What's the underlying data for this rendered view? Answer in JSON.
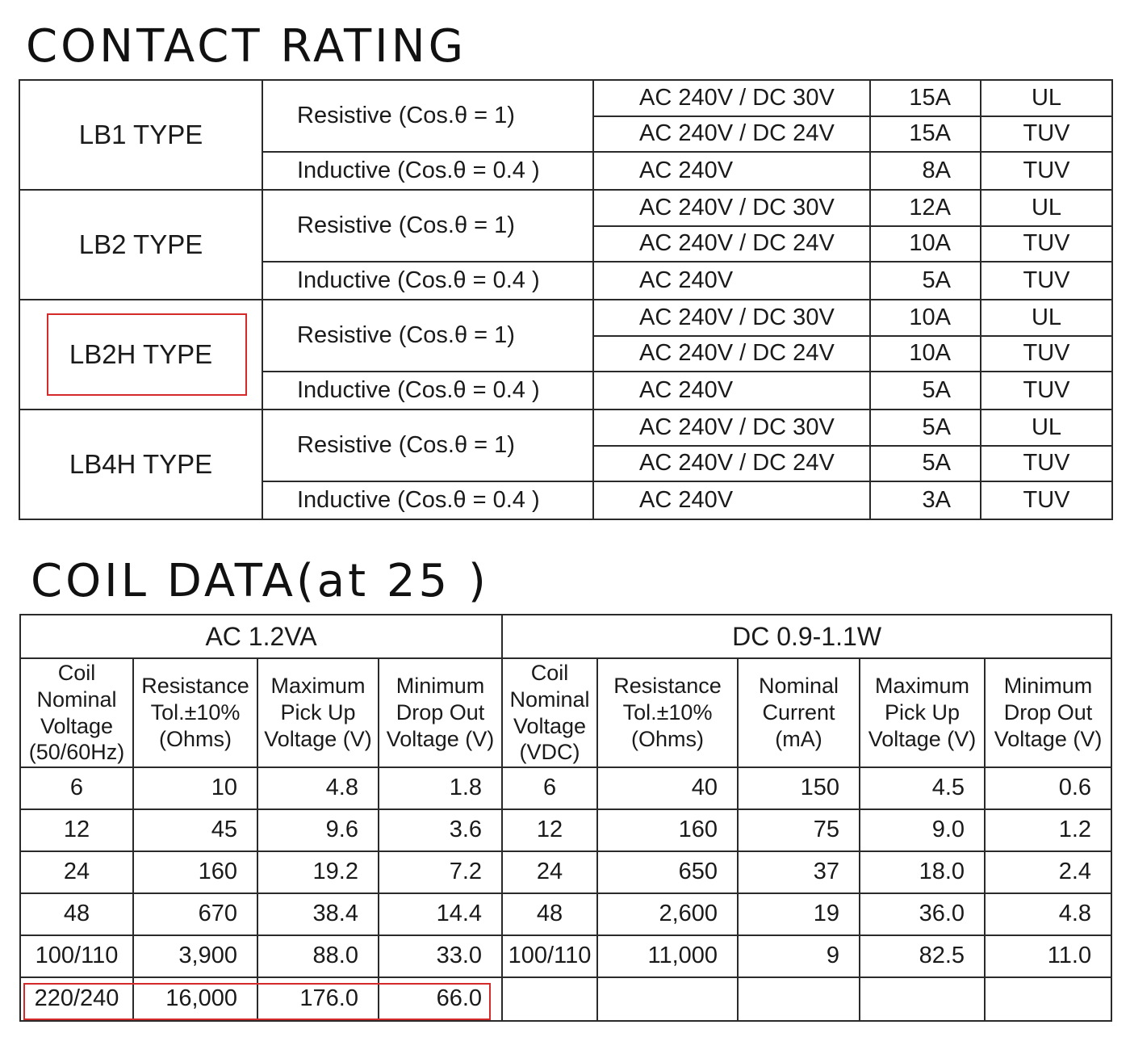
{
  "contact_rating": {
    "title": "CONTACT RATING",
    "groups": [
      {
        "type": "LB1 TYPE",
        "resistive_label": "Resistive (Cos.θ = 1)",
        "inductive_label": "Inductive (Cos.θ = 0.4 )",
        "rows": [
          {
            "voltage": "AC 240V / DC 30V",
            "current": "15A",
            "cert": "UL"
          },
          {
            "voltage": "AC 240V / DC 24V",
            "current": "15A",
            "cert": "TUV"
          },
          {
            "voltage": "AC 240V",
            "current": "8A",
            "cert": "TUV"
          }
        ]
      },
      {
        "type": "LB2 TYPE",
        "resistive_label": "Resistive (Cos.θ = 1)",
        "inductive_label": "Inductive (Cos.θ = 0.4 )",
        "rows": [
          {
            "voltage": "AC 240V / DC 30V",
            "current": "12A",
            "cert": "UL"
          },
          {
            "voltage": "AC 240V / DC 24V",
            "current": "10A",
            "cert": "TUV"
          },
          {
            "voltage": "AC 240V",
            "current": "5A",
            "cert": "TUV"
          }
        ]
      },
      {
        "type": "LB2H TYPE",
        "resistive_label": "Resistive (Cos.θ = 1)",
        "inductive_label": "Inductive (Cos.θ = 0.4 )",
        "rows": [
          {
            "voltage": "AC 240V / DC 30V",
            "current": "10A",
            "cert": "UL"
          },
          {
            "voltage": "AC 240V / DC 24V",
            "current": "10A",
            "cert": "TUV"
          },
          {
            "voltage": "AC 240V",
            "current": "5A",
            "cert": "TUV"
          }
        ]
      },
      {
        "type": "LB4H TYPE",
        "resistive_label": "Resistive (Cos.θ = 1)",
        "inductive_label": "Inductive (Cos.θ = 0.4 )",
        "rows": [
          {
            "voltage": "AC 240V / DC 30V",
            "current": "5A",
            "cert": "UL"
          },
          {
            "voltage": "AC 240V / DC 24V",
            "current": "5A",
            "cert": "TUV"
          },
          {
            "voltage": "AC 240V",
            "current": "3A",
            "cert": "TUV"
          }
        ]
      }
    ]
  },
  "coil_data": {
    "title": "COIL DATA(at 25 )",
    "ac_group": "AC  1.2VA",
    "dc_group": "DC  0.9-1.1W",
    "ac_headers": [
      [
        "Coil",
        "Nominal",
        "Voltage",
        "(50/60Hz)"
      ],
      [
        "Resistance",
        "Tol.±10%",
        "(Ohms)"
      ],
      [
        "Maximum",
        "Pick Up",
        "Voltage (V)"
      ],
      [
        "Minimum",
        "Drop Out",
        "Voltage (V)"
      ]
    ],
    "dc_headers": [
      [
        "Coil",
        "Nominal",
        "Voltage",
        "(VDC)"
      ],
      [
        "Resistance",
        "Tol.±10%",
        "(Ohms)"
      ],
      [
        "Nominal",
        "Current",
        "(mA)"
      ],
      [
        "Maximum",
        "Pick Up",
        "Voltage (V)"
      ],
      [
        "Minimum",
        "Drop Out",
        "Voltage (V)"
      ]
    ],
    "ac_rows": [
      [
        "6",
        "10",
        "4.8",
        "1.8"
      ],
      [
        "12",
        "45",
        "9.6",
        "3.6"
      ],
      [
        "24",
        "160",
        "19.2",
        "7.2"
      ],
      [
        "48",
        "670",
        "38.4",
        "14.4"
      ],
      [
        "100/110",
        "3,900",
        "88.0",
        "33.0"
      ],
      [
        "220/240",
        "16,000",
        "176.0",
        "66.0"
      ]
    ],
    "dc_rows": [
      [
        "6",
        "40",
        "150",
        "4.5",
        "0.6"
      ],
      [
        "12",
        "160",
        "75",
        "9.0",
        "1.2"
      ],
      [
        "24",
        "650",
        "37",
        "18.0",
        "2.4"
      ],
      [
        "48",
        "2,600",
        "19",
        "36.0",
        "4.8"
      ],
      [
        "100/110",
        "11,000",
        "9",
        "82.5",
        "11.0"
      ],
      [
        "",
        "",
        "",
        "",
        ""
      ]
    ]
  },
  "colors": {
    "highlight": "#d42a2a",
    "border": "#2a2a2a",
    "text": "#1a1a1a"
  }
}
